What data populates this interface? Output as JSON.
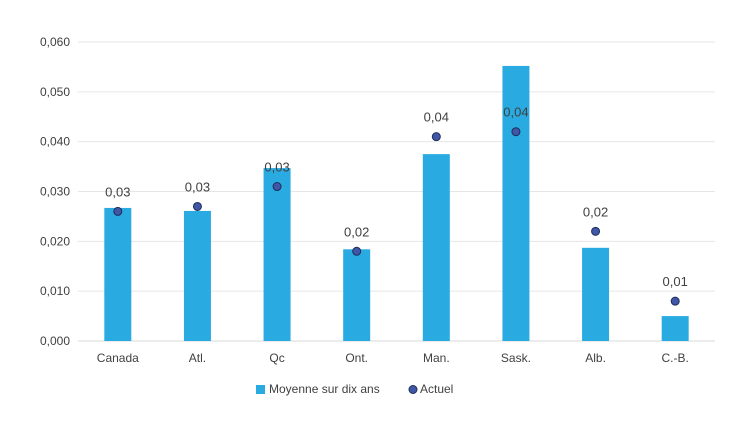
{
  "chart_data": {
    "type": "bar",
    "categories": [
      "Canada",
      "Atl.",
      "Qc",
      "Ont.",
      "Man.",
      "Sask.",
      "Alb.",
      "C.-B."
    ],
    "series": [
      {
        "name": "Moyenne sur dix ans",
        "kind": "bar",
        "color": "#29ABE2",
        "values": [
          0.0267,
          0.0261,
          0.0347,
          0.0184,
          0.0375,
          0.0552,
          0.0187,
          0.005
        ]
      },
      {
        "name": "Actuel",
        "kind": "scatter",
        "color": "#3F57A6",
        "values": [
          0.026,
          0.027,
          0.031,
          0.018,
          0.041,
          0.042,
          0.022,
          0.008
        ],
        "labels": [
          "0,03",
          "0,03",
          "0,03",
          "0,02",
          "0,04",
          "0,04",
          "0,02",
          "0,01"
        ]
      }
    ],
    "ylim": [
      0,
      0.06
    ],
    "yticks": [
      0,
      0.01,
      0.02,
      0.03,
      0.04,
      0.05,
      0.06
    ],
    "ytick_labels": [
      "0,000",
      "0,010",
      "0,020",
      "0,030",
      "0,040",
      "0,050",
      "0,060"
    ],
    "grid": true,
    "legend_position": "bottom",
    "title": "",
    "xlabel": "",
    "ylabel": ""
  }
}
